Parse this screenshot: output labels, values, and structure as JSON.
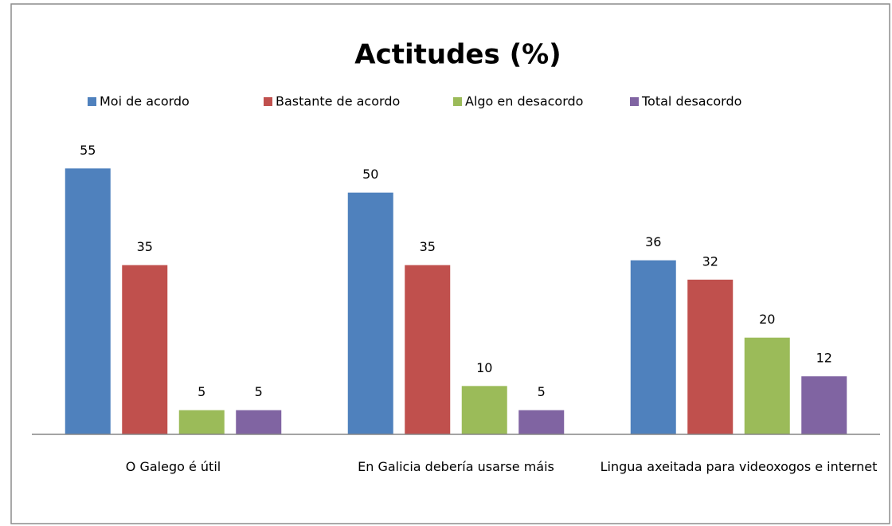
{
  "chart_data": {
    "type": "bar",
    "title": "Actitudes (%)",
    "categories": [
      "O Galego é útil",
      "En Galicia debería usarse máis",
      "Lingua axeitada para videoxogos e internet"
    ],
    "series": [
      {
        "name": "Moi de acordo",
        "color": "#4f81bd",
        "values": [
          55,
          50,
          36
        ]
      },
      {
        "name": "Bastante de acordo",
        "color": "#c0504d",
        "values": [
          35,
          35,
          32
        ]
      },
      {
        "name": "Algo en desacordo",
        "color": "#9bbb59",
        "values": [
          5,
          10,
          20
        ]
      },
      {
        "name": "Total desacordo",
        "color": "#8064a2",
        "values": [
          5,
          5,
          12
        ]
      }
    ],
    "ylim": [
      0,
      60
    ],
    "legend": "top"
  }
}
